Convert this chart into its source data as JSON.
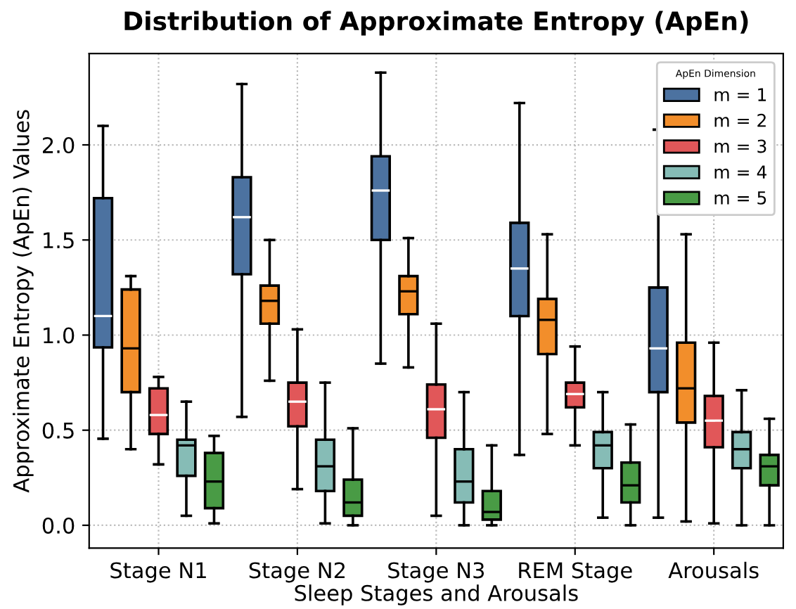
{
  "chart_data": {
    "type": "box",
    "title": "Distribution of Approximate Entropy (ApEn)",
    "xlabel": "Sleep Stages and Arousals",
    "ylabel": "Approximate Entropy (ApEn) Values",
    "legend_title": "ApEn Dimension",
    "categories": [
      "Stage N1",
      "Stage N2",
      "Stage N3",
      "REM Stage",
      "Arousals"
    ],
    "ylim": [
      -0.12,
      2.48
    ],
    "yticks": [
      {
        "value": 0,
        "label": "0.0"
      },
      {
        "value": 0.5,
        "label": "0.5"
      },
      {
        "value": 1,
        "label": "1.0"
      },
      {
        "value": 1.5,
        "label": "1.5"
      },
      {
        "value": 2,
        "label": "2.0"
      }
    ],
    "grid": true,
    "legend": "top right",
    "series": [
      {
        "name": "m = 1",
        "color": "#4c72a0",
        "boxes": [
          {
            "low": 0.455,
            "q1": 0.935,
            "median": 1.1,
            "q3": 1.72,
            "high": 2.1
          },
          {
            "low": 0.57,
            "q1": 1.32,
            "median": 1.62,
            "q3": 1.83,
            "high": 2.32
          },
          {
            "low": 0.85,
            "q1": 1.5,
            "median": 1.76,
            "q3": 1.94,
            "high": 2.38
          },
          {
            "low": 0.37,
            "q1": 1.1,
            "median": 1.35,
            "q3": 1.59,
            "high": 2.22
          },
          {
            "low": 0.04,
            "q1": 0.7,
            "median": 0.93,
            "q3": 1.25,
            "high": 2.08
          }
        ]
      },
      {
        "name": "m = 2",
        "color": "#f28e2b",
        "boxes": [
          {
            "low": 0.4,
            "q1": 0.7,
            "median": 0.93,
            "q3": 1.24,
            "high": 1.31
          },
          {
            "low": 0.76,
            "q1": 1.06,
            "median": 1.18,
            "q3": 1.26,
            "high": 1.5
          },
          {
            "low": 0.83,
            "q1": 1.11,
            "median": 1.23,
            "q3": 1.31,
            "high": 1.51
          },
          {
            "low": 0.48,
            "q1": 0.9,
            "median": 1.08,
            "q3": 1.19,
            "high": 1.53
          },
          {
            "low": 0.02,
            "q1": 0.54,
            "median": 0.72,
            "q3": 0.96,
            "high": 1.53
          }
        ]
      },
      {
        "name": "m = 3",
        "color": "#e15759",
        "boxes": [
          {
            "low": 0.32,
            "q1": 0.48,
            "median": 0.58,
            "q3": 0.72,
            "high": 0.78
          },
          {
            "low": 0.19,
            "q1": 0.52,
            "median": 0.65,
            "q3": 0.75,
            "high": 1.03
          },
          {
            "low": 0.05,
            "q1": 0.46,
            "median": 0.61,
            "q3": 0.74,
            "high": 1.06
          },
          {
            "low": 0.42,
            "q1": 0.62,
            "median": 0.69,
            "q3": 0.75,
            "high": 0.94
          },
          {
            "low": 0.01,
            "q1": 0.41,
            "median": 0.55,
            "q3": 0.68,
            "high": 0.96
          }
        ]
      },
      {
        "name": "m = 4",
        "color": "#86bcb6",
        "boxes": [
          {
            "low": 0.05,
            "q1": 0.26,
            "median": 0.42,
            "q3": 0.45,
            "high": 0.65
          },
          {
            "low": 0.01,
            "q1": 0.18,
            "median": 0.31,
            "q3": 0.45,
            "high": 0.75
          },
          {
            "low": 0.0,
            "q1": 0.12,
            "median": 0.23,
            "q3": 0.4,
            "high": 0.7
          },
          {
            "low": 0.04,
            "q1": 0.3,
            "median": 0.42,
            "q3": 0.49,
            "high": 0.7
          },
          {
            "low": 0.0,
            "q1": 0.3,
            "median": 0.4,
            "q3": 0.49,
            "high": 0.71
          }
        ]
      },
      {
        "name": "m = 5",
        "color": "#499b45",
        "boxes": [
          {
            "low": 0.01,
            "q1": 0.09,
            "median": 0.23,
            "q3": 0.38,
            "high": 0.47
          },
          {
            "low": 0.0,
            "q1": 0.05,
            "median": 0.12,
            "q3": 0.24,
            "high": 0.51
          },
          {
            "low": 0.0,
            "q1": 0.03,
            "median": 0.07,
            "q3": 0.18,
            "high": 0.42
          },
          {
            "low": 0.0,
            "q1": 0.12,
            "median": 0.21,
            "q3": 0.33,
            "high": 0.53
          },
          {
            "low": 0.0,
            "q1": 0.21,
            "median": 0.31,
            "q3": 0.37,
            "high": 0.56
          }
        ]
      }
    ]
  }
}
